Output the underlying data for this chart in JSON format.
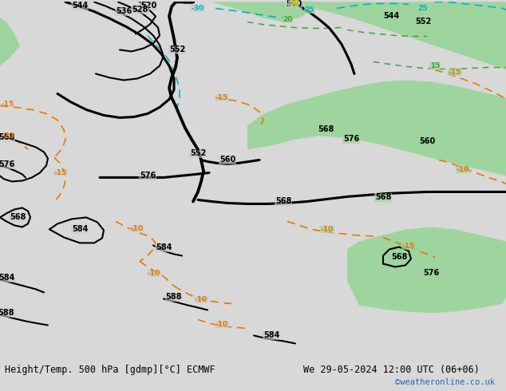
{
  "title_left": "Height/Temp. 500 hPa [gdmp][°C] ECMWF",
  "title_right": "We 29-05-2024 12:00 UTC (06+06)",
  "credit": "©weatheronline.co.uk",
  "bg_gray": "#c8c8c8",
  "bg_green": "#9ed49e",
  "bar_bg": "#d8d8d8",
  "black": "#000000",
  "orange": "#e87800",
  "cyan": "#00b4c8",
  "dkgreen": "#44a044",
  "yellowgreen": "#aacc00",
  "credit_color": "#2266bb",
  "title_fontsize": 8.5,
  "credit_fontsize": 7.5
}
